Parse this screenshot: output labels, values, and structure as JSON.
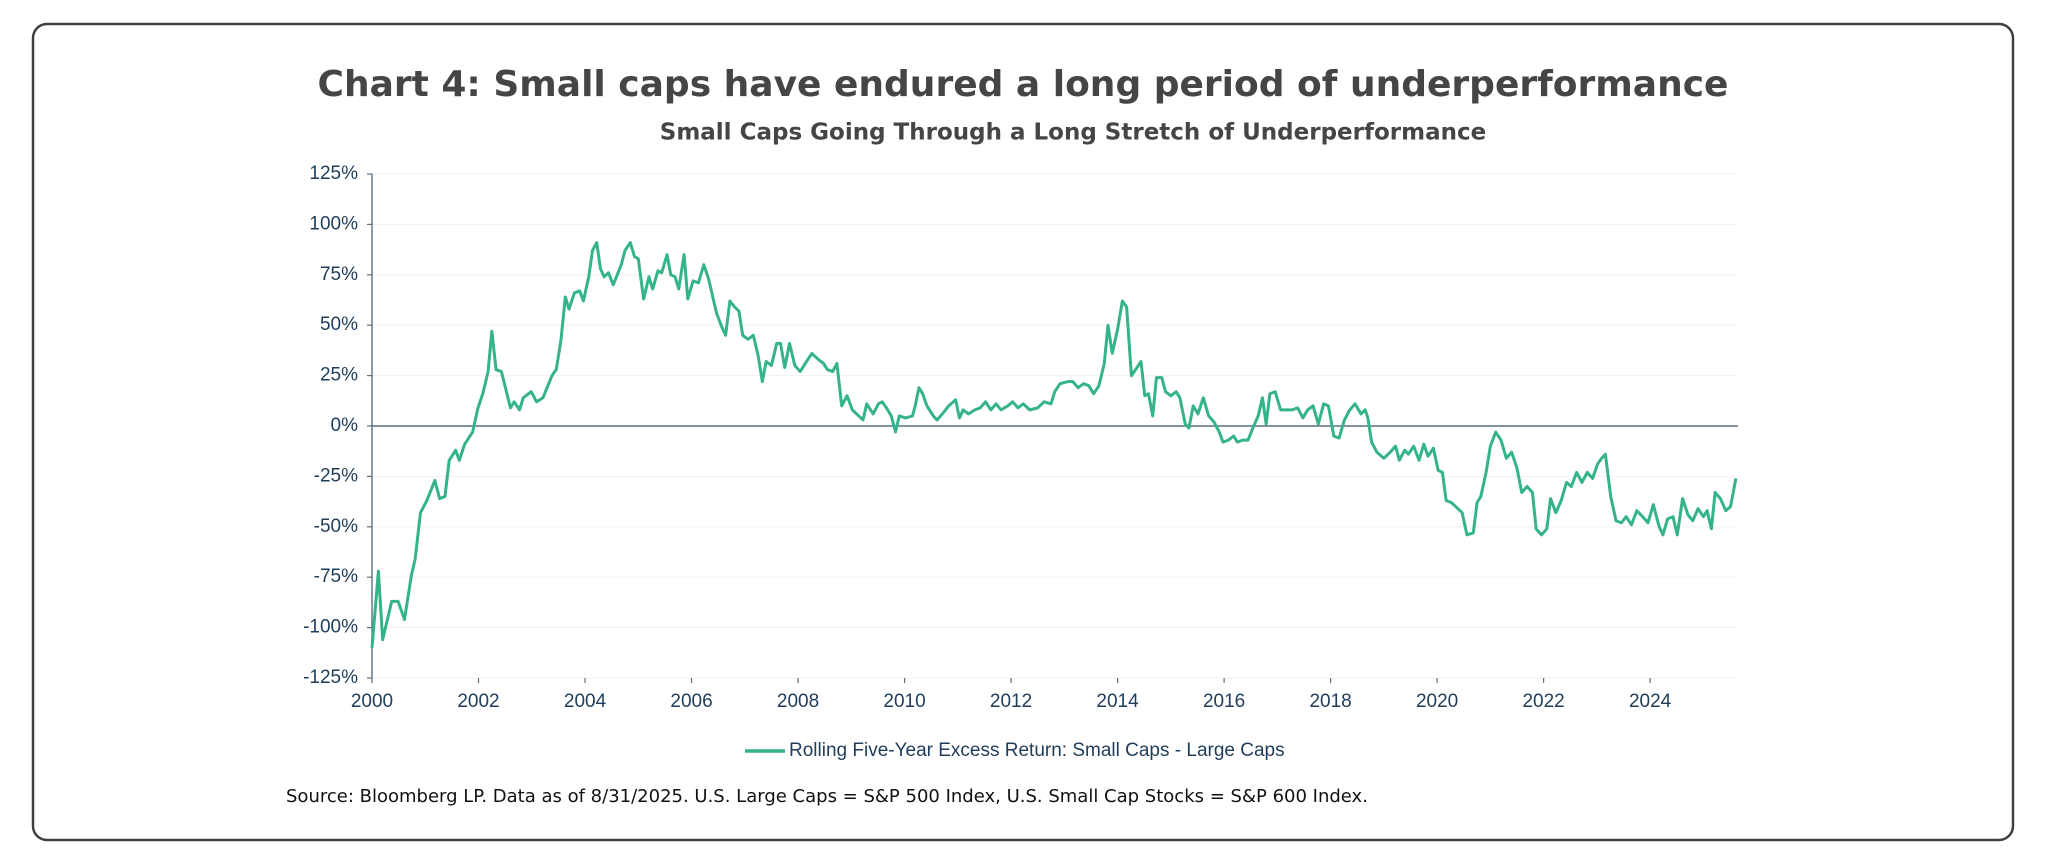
{
  "chart_data": {
    "type": "line",
    "title": "Chart 4: Small caps have endured a long period of underperformance",
    "subtitle": "Small Caps Going Through a Long Stretch of Underperformance",
    "source": "Source: Bloomberg LP. Data as of 8/31/2025. U.S. Large Caps = S&P 500 Index, U.S. Small Cap Stocks = S&P 600 Index.",
    "x": [
      2000.0,
      2000.12,
      2000.2,
      2000.37,
      2000.49,
      2000.61,
      2000.74,
      2000.81,
      2000.91,
      2001.03,
      2001.18,
      2001.27,
      2001.37,
      2001.45,
      2001.57,
      2001.64,
      2001.74,
      2001.89,
      2001.99,
      2002.08,
      2002.18,
      2002.25,
      2002.33,
      2002.43,
      2002.6,
      2002.67,
      2002.77,
      2002.84,
      2002.99,
      2003.09,
      2003.21,
      2003.38,
      2003.46,
      2003.55,
      2003.63,
      2003.7,
      2003.8,
      2003.9,
      2003.97,
      2004.07,
      2004.14,
      2004.22,
      2004.29,
      2004.36,
      2004.44,
      2004.53,
      2004.68,
      2004.75,
      2004.85,
      2004.93,
      2005.0,
      2005.1,
      2005.2,
      2005.27,
      2005.37,
      2005.44,
      2005.54,
      2005.61,
      2005.69,
      2005.76,
      2005.86,
      2005.93,
      2006.03,
      2006.13,
      2006.23,
      2006.32,
      2006.47,
      2006.57,
      2006.64,
      2006.72,
      2006.81,
      2006.89,
      2006.96,
      2007.06,
      2007.16,
      2007.25,
      2007.33,
      2007.4,
      2007.5,
      2007.6,
      2007.67,
      2007.75,
      2007.84,
      2007.94,
      2008.04,
      2008.16,
      2008.26,
      2008.38,
      2008.48,
      2008.55,
      2008.65,
      2008.73,
      2008.82,
      2008.92,
      2009.02,
      2009.14,
      2009.22,
      2009.29,
      2009.41,
      2009.51,
      2009.58,
      2009.66,
      2009.75,
      2009.83,
      2009.9,
      2010.02,
      2010.15,
      2010.2,
      2010.27,
      2010.34,
      2010.42,
      2010.54,
      2010.61,
      2010.71,
      2010.83,
      2010.96,
      2011.03,
      2011.1,
      2011.2,
      2011.32,
      2011.42,
      2011.52,
      2011.62,
      2011.72,
      2011.81,
      2011.94,
      2012.03,
      2012.13,
      2012.23,
      2012.35,
      2012.5,
      2012.62,
      2012.75,
      2012.82,
      2012.92,
      2013.06,
      2013.16,
      2013.26,
      2013.36,
      2013.46,
      2013.55,
      2013.65,
      2013.75,
      2013.82,
      2013.9,
      2014.0,
      2014.09,
      2014.17,
      2014.26,
      2014.34,
      2014.44,
      2014.51,
      2014.58,
      2014.66,
      2014.73,
      2014.83,
      2014.9,
      2015.0,
      2015.1,
      2015.17,
      2015.27,
      2015.34,
      2015.42,
      2015.51,
      2015.61,
      2015.71,
      2015.81,
      2015.91,
      2015.98,
      2016.08,
      2016.18,
      2016.25,
      2016.35,
      2016.45,
      2016.54,
      2016.64,
      2016.72,
      2016.79,
      2016.86,
      2016.96,
      2017.06,
      2017.16,
      2017.28,
      2017.38,
      2017.48,
      2017.57,
      2017.67,
      2017.77,
      2017.87,
      2017.96,
      2018.06,
      2018.16,
      2018.26,
      2018.36,
      2018.46,
      2018.57,
      2018.65,
      2018.7,
      2018.77,
      2018.87,
      2019.0,
      2019.12,
      2019.22,
      2019.29,
      2019.39,
      2019.46,
      2019.56,
      2019.66,
      2019.75,
      2019.83,
      2019.93,
      2020.02,
      2020.1,
      2020.17,
      2020.27,
      2020.39,
      2020.47,
      2020.56,
      2020.68,
      2020.75,
      2020.82,
      2020.92,
      2021.0,
      2021.1,
      2021.2,
      2021.3,
      2021.4,
      2021.5,
      2021.59,
      2021.69,
      2021.79,
      2021.86,
      2021.96,
      2022.06,
      2022.13,
      2022.23,
      2022.33,
      2022.43,
      2022.52,
      2022.62,
      2022.72,
      2022.82,
      2022.92,
      2023.01,
      2023.09,
      2023.16,
      2023.26,
      2023.36,
      2023.46,
      2023.55,
      2023.65,
      2023.75,
      2023.86,
      2023.96,
      2024.06,
      2024.17,
      2024.24,
      2024.33,
      2024.43,
      2024.51,
      2024.61,
      2024.71,
      2024.8,
      2024.9,
      2025.0,
      2025.07,
      2025.15,
      2025.22,
      2025.32,
      2025.42,
      2025.51,
      2025.61
    ],
    "series": [
      {
        "name": "Rolling Five-Year Excess Return: Small Caps - Large Caps",
        "color": "#35b38a",
        "values": [
          -110,
          -72,
          -106,
          -87,
          -87,
          -96,
          -74,
          -66,
          -43,
          -37,
          -27,
          -36,
          -35,
          -17,
          -12,
          -17,
          -9,
          -3,
          9,
          16,
          27,
          47,
          28,
          27,
          9,
          12,
          8,
          14,
          17,
          12,
          14,
          25,
          28,
          43,
          64,
          58,
          66,
          67,
          62,
          74,
          87,
          91,
          78,
          74,
          76,
          70,
          80,
          87,
          91,
          84,
          83,
          63,
          74,
          68,
          77,
          76,
          85,
          75,
          74,
          68,
          85,
          63,
          72,
          71,
          80,
          73,
          56,
          49,
          45,
          62,
          59,
          57,
          45,
          43,
          45,
          35,
          22,
          32,
          30,
          41,
          41,
          29,
          41,
          30,
          27,
          32,
          36,
          33,
          31,
          28,
          27,
          31,
          10,
          15,
          8,
          5,
          3,
          11,
          6,
          11,
          12,
          9,
          5,
          -3,
          5,
          4,
          5,
          10,
          19,
          16,
          10,
          5,
          3,
          6,
          10,
          13,
          4,
          8,
          6,
          8,
          9,
          12,
          8,
          11,
          8,
          10,
          12,
          9,
          11,
          8,
          9,
          12,
          11,
          17,
          21,
          22,
          22,
          19,
          21,
          20,
          16,
          20,
          31,
          50,
          36,
          48,
          62,
          59,
          25,
          28,
          32,
          15,
          16,
          5,
          24,
          24,
          17,
          15,
          17,
          14,
          1,
          -1,
          10,
          6,
          14,
          5,
          2,
          -3,
          -8,
          -7,
          -5,
          -8,
          -7,
          -7,
          -1,
          5,
          14,
          1,
          16,
          17,
          8,
          8,
          8,
          9,
          4,
          8,
          10,
          1,
          11,
          10,
          -5,
          -6,
          3,
          8,
          11,
          6,
          8,
          4,
          -8,
          -13,
          -16,
          -13,
          -10,
          -17,
          -12,
          -14,
          -10,
          -17,
          -9,
          -15,
          -11,
          -22,
          -23,
          -37,
          -38,
          -41,
          -43,
          -54,
          -53,
          -38,
          -35,
          -23,
          -10,
          -3,
          -7,
          -16,
          -13,
          -21,
          -33,
          -30,
          -33,
          -51,
          -54,
          -51,
          -36,
          -43,
          -37,
          -28,
          -30,
          -23,
          -28,
          -23,
          -26,
          -19,
          -16,
          -14,
          -35,
          -47,
          -48,
          -45,
          -49,
          -42,
          -45,
          -48,
          -39,
          -50,
          -54,
          -46,
          -45,
          -54,
          -36,
          -44,
          -47,
          -41,
          -45,
          -42,
          -51,
          -33,
          -36,
          -42,
          -40,
          -26
        ]
      }
    ],
    "xlim": [
      2000,
      2025.65
    ],
    "xticks": [
      2000,
      2002,
      2004,
      2006,
      2008,
      2010,
      2012,
      2014,
      2016,
      2018,
      2020,
      2022,
      2024
    ],
    "ylim": [
      -125,
      125
    ],
    "yticks": [
      {
        "value": -125,
        "label": "-125%"
      },
      {
        "value": -100,
        "label": "-100%"
      },
      {
        "value": -75,
        "label": "-75%"
      },
      {
        "value": -50,
        "label": "-50%"
      },
      {
        "value": -25,
        "label": "-25%"
      },
      {
        "value": 0,
        "label": "0%"
      },
      {
        "value": 25,
        "label": "25%"
      },
      {
        "value": 50,
        "label": "50%"
      },
      {
        "value": 75,
        "label": "75%"
      },
      {
        "value": 100,
        "label": "100%"
      },
      {
        "value": 125,
        "label": "125%"
      }
    ],
    "grid": true,
    "legend": "bottom"
  }
}
